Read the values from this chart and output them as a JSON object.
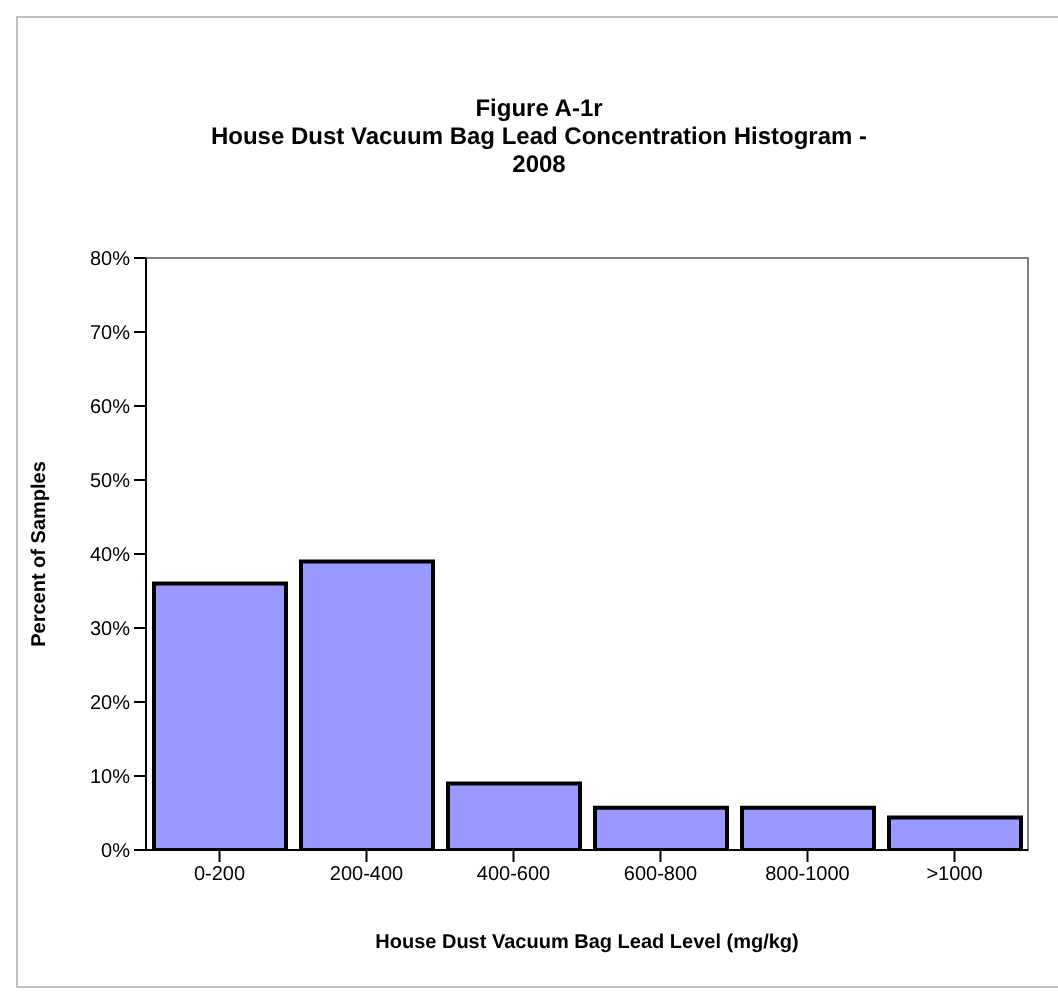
{
  "chart_data": {
    "type": "bar",
    "title": "Figure A-1r\nHouse Dust Vacuum Bag Lead Concentration Histogram  -\n2008",
    "xlabel": "House Dust Vacuum Bag Lead Level (mg/kg)",
    "ylabel": "Percent of Samples",
    "categories": [
      "0-200",
      "200-400",
      "400-600",
      "600-800",
      "800-1000",
      ">1000"
    ],
    "values": [
      36,
      39,
      9,
      5.7,
      5.7,
      4.4
    ],
    "color": "#9999ff",
    "ylim": [
      0,
      80
    ],
    "yticks": [
      {
        "value": 0,
        "label": "0%"
      },
      {
        "value": 10,
        "label": "10%"
      },
      {
        "value": 20,
        "label": "20%"
      },
      {
        "value": 30,
        "label": "30%"
      },
      {
        "value": 40,
        "label": "40%"
      },
      {
        "value": 50,
        "label": "50%"
      },
      {
        "value": 60,
        "label": "60%"
      },
      {
        "value": 70,
        "label": "70%"
      },
      {
        "value": 80,
        "label": "80%"
      }
    ],
    "grid": false,
    "legend": false
  }
}
